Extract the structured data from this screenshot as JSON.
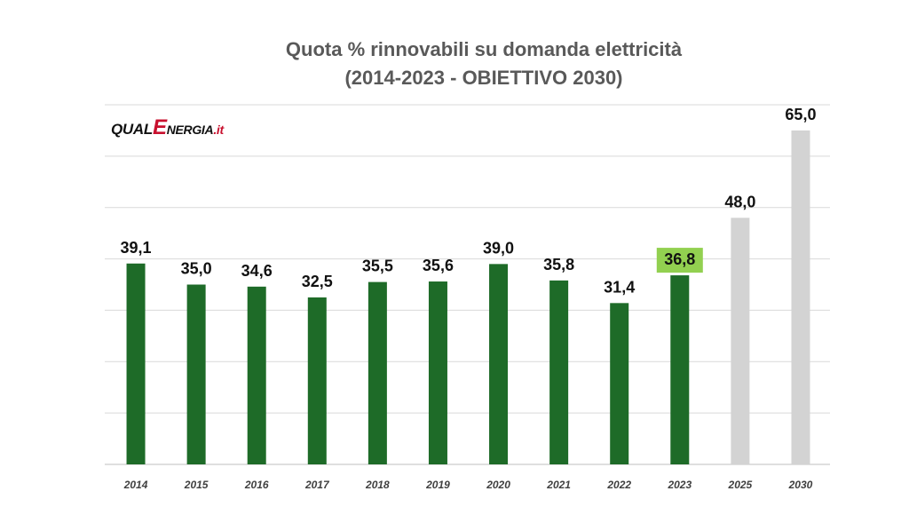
{
  "title_line1": "Quota % rinnovabili su domanda elettricità",
  "title_line2": "(2014-2023 - OBIETTIVO 2030)",
  "logo": {
    "part1": "QUAL",
    "part2": "E",
    "part3": "NERGIA",
    "part4": ".it"
  },
  "colors": {
    "actual": "#1e6b28",
    "target": "#d3d3d3",
    "highlight_label_bg": "#92d050",
    "grid": "#d9d9d9"
  },
  "chart_data": {
    "type": "bar",
    "categories": [
      "2014",
      "2015",
      "2016",
      "2017",
      "2018",
      "2019",
      "2020",
      "2021",
      "2022",
      "2023",
      "2025",
      "2030"
    ],
    "values": [
      39.1,
      35.0,
      34.6,
      32.5,
      35.5,
      35.6,
      39.0,
      35.8,
      31.4,
      36.8,
      48.0,
      65.0
    ],
    "value_labels": [
      "39,1",
      "35,0",
      "34,6",
      "32,5",
      "35,5",
      "35,6",
      "39,0",
      "35,8",
      "31,4",
      "36,8",
      "48,0",
      "65,0"
    ],
    "bar_kind": [
      "actual",
      "actual",
      "actual",
      "actual",
      "actual",
      "actual",
      "actual",
      "actual",
      "actual",
      "highlight",
      "target",
      "target"
    ],
    "ylim": [
      0,
      70
    ],
    "grid": true
  }
}
